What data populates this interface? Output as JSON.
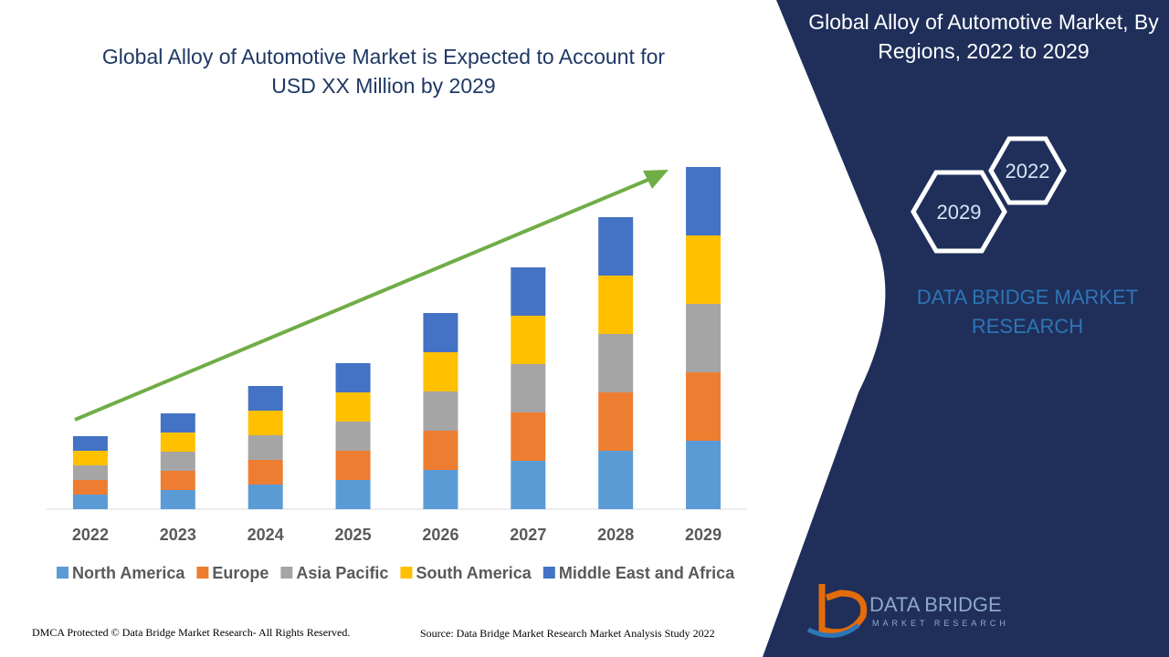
{
  "chart_data": {
    "type": "bar",
    "stacked": true,
    "title": "Global Alloy of Automotive Market is Expected to Account for USD XX Million by 2029",
    "categories": [
      "2022",
      "2023",
      "2024",
      "2025",
      "2026",
      "2027",
      "2028",
      "2029"
    ],
    "series": [
      {
        "name": "North America",
        "color": "#5b9bd5",
        "values": [
          16,
          21,
          27,
          32,
          43,
          53,
          64,
          75
        ]
      },
      {
        "name": "Europe",
        "color": "#ed7d31",
        "values": [
          16,
          21,
          27,
          32,
          43,
          53,
          64,
          75
        ]
      },
      {
        "name": "Asia Pacific",
        "color": "#a5a5a5",
        "values": [
          16,
          21,
          27,
          32,
          43,
          53,
          64,
          75
        ]
      },
      {
        "name": "South America",
        "color": "#ffc000",
        "values": [
          16,
          21,
          27,
          32,
          43,
          53,
          64,
          75
        ]
      },
      {
        "name": "Middle East and Africa",
        "color": "#4472c4",
        "values": [
          16,
          21,
          27,
          32,
          43,
          53,
          64,
          75
        ]
      }
    ],
    "ylim": [
      0,
      400
    ],
    "legend": "bottom",
    "trend_arrow_color": "#70ad47"
  },
  "panel": {
    "title": "Global Alloy of Automotive Market, By Regions, 2022 to 2029",
    "hexagons": [
      "2022",
      "2029"
    ],
    "brand": "DATA BRIDGE MARKET RESEARCH"
  },
  "logo": {
    "name": "DATA BRIDGE",
    "tagline": "MARKET RESEARCH"
  },
  "footer": {
    "copyright": "DMCA Protected © Data Bridge Market Research- All Rights Reserved.",
    "source": "Source: Data Bridge Market Research Market Analysis Study 2022"
  }
}
